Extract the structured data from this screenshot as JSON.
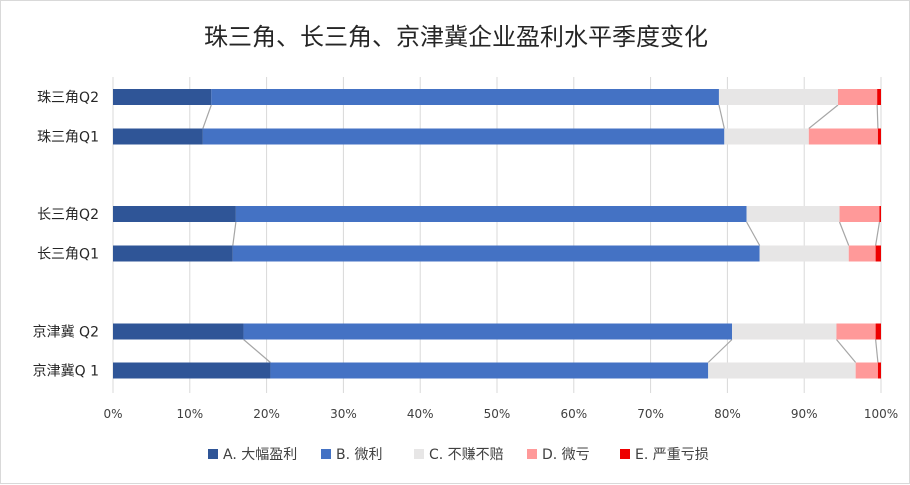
{
  "chart_data": {
    "type": "bar",
    "orientation": "horizontal",
    "stacked": "percent",
    "title": "珠三角、长三角、京津冀企业盈利水平季度变化",
    "categories": [
      "珠三角Q2",
      "珠三角Q1",
      "长三角Q2",
      "长三角Q1",
      "京津冀  Q2",
      "京津冀Q  1"
    ],
    "groups": [
      [
        0,
        1
      ],
      [
        2,
        3
      ],
      [
        4,
        5
      ]
    ],
    "series": [
      {
        "name": "A. 大幅盈利",
        "color": "#2f5597",
        "values": [
          12.8,
          11.7,
          16.0,
          15.6,
          17.0,
          20.5
        ]
      },
      {
        "name": "B. 微利",
        "color": "#4472c4",
        "values": [
          66.1,
          67.9,
          66.5,
          68.6,
          63.6,
          57.0
        ]
      },
      {
        "name": "C. 不赚不赔",
        "color": "#e7e6e6",
        "values": [
          15.5,
          11.0,
          12.1,
          11.6,
          13.6,
          19.2
        ]
      },
      {
        "name": "D. 微亏",
        "color": "#ff9999",
        "values": [
          5.1,
          9.0,
          5.2,
          3.5,
          5.1,
          2.9
        ]
      },
      {
        "name": "E. 严重亏损",
        "color": "#ee0000",
        "values": [
          0.5,
          0.4,
          0.2,
          0.7,
          0.7,
          0.4
        ]
      }
    ],
    "xlim": [
      0,
      100
    ],
    "xticks": [
      "0%",
      "10%",
      "20%",
      "30%",
      "40%",
      "50%",
      "60%",
      "70%",
      "80%",
      "90%",
      "100%"
    ],
    "grid": true,
    "series_lines": true,
    "legend_position": "bottom"
  }
}
